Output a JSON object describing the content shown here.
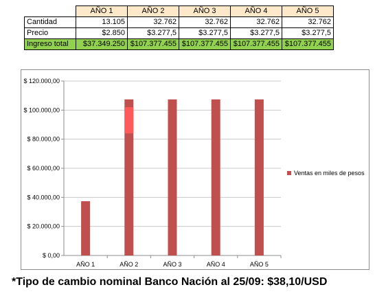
{
  "table": {
    "headers": [
      "AÑO 1",
      "AÑO 2",
      "AÑO 3",
      "AÑO 4",
      "AÑO 5"
    ],
    "rows": [
      {
        "label": "Cantidad",
        "values": [
          "13.105",
          "32.762",
          "32.762",
          "32.762",
          "32.762"
        ]
      },
      {
        "label": "Precio",
        "values": [
          "$2.850",
          "$3.277,5",
          "$3.277,5",
          "$3.277,5",
          "$3.277,5"
        ]
      },
      {
        "label": "Ingreso total",
        "values": [
          "$37.349.250",
          "$107.377.455",
          "$107.377.455",
          "$107.377.455",
          "$107.377.455"
        ]
      }
    ]
  },
  "chart_data": {
    "type": "bar",
    "categories": [
      "AÑO 1",
      "AÑO 2",
      "AÑO 3",
      "AÑO 4",
      "AÑO 5"
    ],
    "series": [
      {
        "name": "Ventas en miles de pesos",
        "values": [
          37349.25,
          107377.455,
          107377.455,
          107377.455,
          107377.455
        ]
      }
    ],
    "highlight": {
      "category": "AÑO 2",
      "from": 84000,
      "to": 102000,
      "color": "#ff5a5a"
    },
    "ylim": [
      0,
      120000
    ],
    "yticks": [
      0,
      20000,
      40000,
      60000,
      80000,
      100000,
      120000
    ],
    "ytick_labels": [
      "$ 0,00",
      "$ 20.000,00",
      "$ 40.000,00",
      "$ 60.000,00",
      "$ 80.000,00",
      "$ 100.000,00",
      "$ 120.000,00"
    ],
    "grid": true,
    "legend_position": "right",
    "colors": {
      "bar": "#c0504d",
      "axis": "#8c8c8c",
      "grid": "#c8c8c8"
    }
  },
  "footnote": "*Tipo de cambio nominal Banco Nación al 25/09: $38,10/USD"
}
